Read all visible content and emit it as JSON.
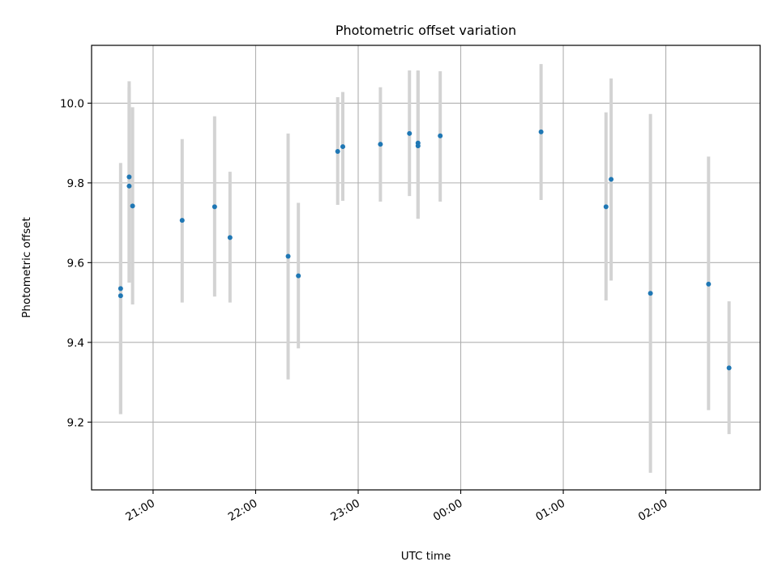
{
  "chart_data": {
    "type": "scatter",
    "title": "Photometric offset variation",
    "xlabel": "UTC time",
    "ylabel": "Photometric offset",
    "x_axis": "time",
    "x_start_clock": "20:24",
    "xlim_hours": [
      20.4,
      26.92
    ],
    "ylim": [
      9.03,
      10.145
    ],
    "yticks": [
      9.2,
      9.4,
      9.6,
      9.8,
      10.0
    ],
    "ytick_labels": [
      "9.2",
      "9.4",
      "9.6",
      "9.8",
      "10.0"
    ],
    "xticks_hours": [
      21,
      22,
      23,
      24,
      25,
      26
    ],
    "xtick_labels": [
      "21:00",
      "22:00",
      "23:00",
      "00:00",
      "01:00",
      "02:00"
    ],
    "grid": true,
    "colors": {
      "point": "#1f77b4",
      "errorbar": "#d3d3d3",
      "grid": "#b0b0b0",
      "axis": "#000000"
    },
    "points": [
      {
        "time": "20:41",
        "y": 9.535,
        "yerr_low": 9.22,
        "yerr_high": 9.85
      },
      {
        "time": "20:41",
        "y": 9.517,
        "yerr_low": 9.22,
        "yerr_high": 9.8
      },
      {
        "time": "20:46",
        "y": 9.815,
        "yerr_low": 9.55,
        "yerr_high": 10.055
      },
      {
        "time": "20:46",
        "y": 9.792,
        "yerr_low": 9.55,
        "yerr_high": 10.04
      },
      {
        "time": "20:48",
        "y": 9.742,
        "yerr_low": 9.495,
        "yerr_high": 9.99
      },
      {
        "time": "21:17",
        "y": 9.706,
        "yerr_low": 9.5,
        "yerr_high": 9.91
      },
      {
        "time": "21:36",
        "y": 9.74,
        "yerr_low": 9.515,
        "yerr_high": 9.967
      },
      {
        "time": "21:45",
        "y": 9.663,
        "yerr_low": 9.5,
        "yerr_high": 9.828
      },
      {
        "time": "22:19",
        "y": 9.616,
        "yerr_low": 9.307,
        "yerr_high": 9.924
      },
      {
        "time": "22:25",
        "y": 9.567,
        "yerr_low": 9.385,
        "yerr_high": 9.75
      },
      {
        "time": "22:48",
        "y": 9.879,
        "yerr_low": 9.745,
        "yerr_high": 10.015
      },
      {
        "time": "22:51",
        "y": 9.891,
        "yerr_low": 9.755,
        "yerr_high": 10.028
      },
      {
        "time": "23:13",
        "y": 9.897,
        "yerr_low": 9.753,
        "yerr_high": 10.04
      },
      {
        "time": "23:30",
        "y": 9.924,
        "yerr_low": 9.767,
        "yerr_high": 10.082
      },
      {
        "time": "23:35",
        "y": 9.9,
        "yerr_low": 9.71,
        "yerr_high": 10.082
      },
      {
        "time": "23:35",
        "y": 9.893,
        "yerr_low": 9.71,
        "yerr_high": 10.08
      },
      {
        "time": "23:48",
        "y": 9.918,
        "yerr_low": 9.753,
        "yerr_high": 10.08
      },
      {
        "time": "00:47",
        "y": 9.928,
        "yerr_low": 9.757,
        "yerr_high": 10.098
      },
      {
        "time": "01:25",
        "y": 9.74,
        "yerr_low": 9.505,
        "yerr_high": 9.977
      },
      {
        "time": "01:28",
        "y": 9.809,
        "yerr_low": 9.555,
        "yerr_high": 10.062
      },
      {
        "time": "01:51",
        "y": 9.523,
        "yerr_low": 9.073,
        "yerr_high": 9.973
      },
      {
        "time": "02:25",
        "y": 9.546,
        "yerr_low": 9.23,
        "yerr_high": 9.866
      },
      {
        "time": "02:37",
        "y": 9.336,
        "yerr_low": 9.17,
        "yerr_high": 9.503
      }
    ]
  }
}
